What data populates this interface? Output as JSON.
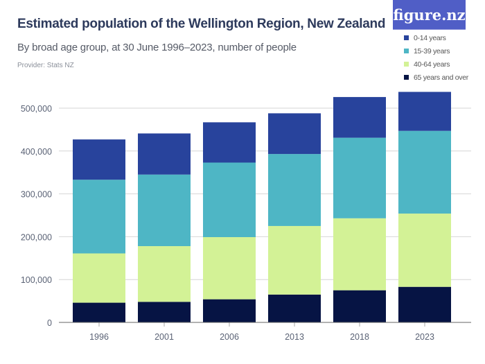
{
  "header": {
    "title": "Estimated population of the Wellington Region, New Zealand",
    "subtitle": "By broad age group, at 30 June 1996–2023, number of people",
    "provider": "Provider: Stats NZ",
    "logo": "figure.nz"
  },
  "chart_data": {
    "type": "bar",
    "stacked": true,
    "title": "Estimated population of the Wellington Region, New Zealand",
    "xlabel": "",
    "ylabel": "",
    "ylim": [
      0,
      540000
    ],
    "yticks": [
      0,
      100000,
      200000,
      300000,
      400000,
      500000
    ],
    "ytick_labels": [
      "0",
      "100,000",
      "200,000",
      "300,000",
      "400,000",
      "500,000"
    ],
    "grid": true,
    "legend_position": "top-right",
    "categories": [
      "1996",
      "2001",
      "2006",
      "2013",
      "2018",
      "2023"
    ],
    "series": [
      {
        "name": "65 years and over",
        "color": "#061444",
        "values": [
          46000,
          48000,
          54000,
          65000,
          75000,
          83000
        ]
      },
      {
        "name": "40-64 years",
        "color": "#d3f296",
        "values": [
          115000,
          130000,
          145000,
          160000,
          168000,
          171000
        ]
      },
      {
        "name": "15-39 years",
        "color": "#4eb6c5",
        "values": [
          172000,
          167000,
          174000,
          168000,
          188000,
          193000
        ]
      },
      {
        "name": "0-14 years",
        "color": "#28439c",
        "values": [
          94000,
          96000,
          94000,
          95000,
          95000,
          91000
        ]
      }
    ],
    "legend_order": [
      "0-14 years",
      "15-39 years",
      "40-64 years",
      "65 years and over"
    ]
  }
}
